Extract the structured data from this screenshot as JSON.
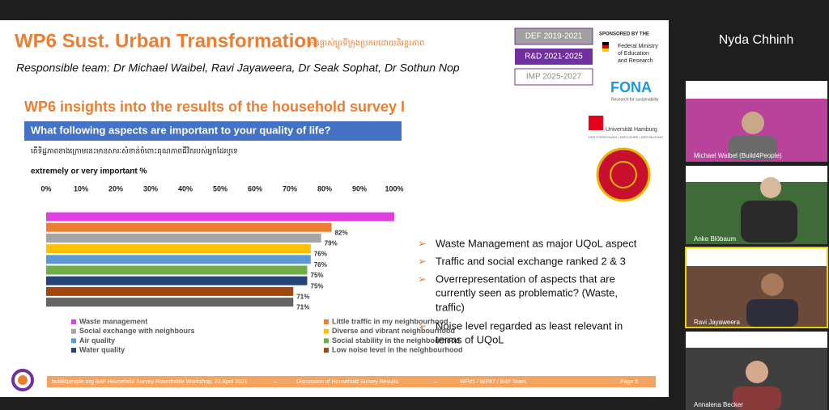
{
  "slide": {
    "title": "WP6 Sust. Urban Transformation",
    "title_khmer": "ការផ្លាស់ប្តូរទីក្រុងប្រកបដោយនិរន្តរភាព",
    "team": "Responsible team: Dr Michael Waibel, Ravi Jayaweera, Dr Seak Sophat, Dr Sothun Nop",
    "phases": [
      "DEF 2019-2021",
      "R&D 2021-2025",
      "IMP 2025-2027"
    ],
    "sponsor": {
      "label": "SPONSORED BY THE",
      "ministry": [
        "Federal Ministry",
        "of Education",
        "and Research"
      ],
      "fona": "FONA",
      "fona_sub": "Research for sustainability",
      "uni": "Universität Hamburg",
      "uni_sub": "DER FORSCHUNG | DER LEHRE | DER BILDUNG"
    },
    "heading": "WP6 insights into the results of the household survey I",
    "question": "What following aspects are important to your quality of life?",
    "question_khmer": "តើទិដ្ឋភាពខាងក្រោមនេះមានសារៈសំខាន់ចំពោះគុណភាពជីវិតរបស់អ្នកដែរឬទេ",
    "measure": "extremely or very important %",
    "bullets": [
      [
        "Waste Management as major UQoL aspect"
      ],
      [
        "Traffic and social exchange ranked 2 & 3"
      ],
      [
        "Overrepresentation of aspects that are",
        "currently seen as problematic? (Waste,",
        "traffic)"
      ],
      [
        "Noise level regarded as least relevant in",
        "terms of UQoL"
      ]
    ],
    "footer": {
      "event": "build4people.org B4P Household Survey Roundtable Workshop, 22 April 2021",
      "separator": "–",
      "topic": "Discussion of Household Survey Results",
      "team": "WP#1 / WP#7 / B4P Team",
      "page": "Page 5"
    }
  },
  "chart_data": {
    "type": "barh",
    "categories": [
      "Waste management",
      "Little traffic in my neighbourhood",
      "Social exchange with neighbours",
      "Diverse and vibrant neighbourhood",
      "Air quality",
      "Social stability in the neighbourhood",
      "Water quality",
      "Low noise level in the neighbourhood",
      null
    ],
    "values": [
      100,
      82,
      79,
      76,
      76,
      75,
      75,
      71,
      71
    ],
    "value_labels": [
      null,
      "82%",
      "79%",
      "76%",
      "76%",
      "75%",
      "75%",
      "71%",
      "71%"
    ],
    "colors": [
      "#e040e0",
      "#ed7d31",
      "#a5a5a5",
      "#ffc000",
      "#5b9bd5",
      "#70ad47",
      "#264478",
      "#9e480e",
      "#636363"
    ],
    "xlim": [
      0,
      100
    ],
    "xticks": [
      {
        "value": 0,
        "label": "0%"
      },
      {
        "value": 10,
        "label": "10%"
      },
      {
        "value": 20,
        "label": "20%"
      },
      {
        "value": 30,
        "label": "30%"
      },
      {
        "value": 40,
        "label": "40%"
      },
      {
        "value": 50,
        "label": "50%"
      },
      {
        "value": 60,
        "label": "60%"
      },
      {
        "value": 70,
        "label": "70%"
      },
      {
        "value": 80,
        "label": "80%"
      },
      {
        "value": 90,
        "label": "90%"
      },
      {
        "value": 100,
        "label": "100%"
      }
    ],
    "grid": false
  },
  "participants": {
    "presenter": "Nyda Chhinh",
    "tiles": [
      "Michael Waibel (Build4People)",
      "Anke Blöbaum",
      "Ravi Jayaweera",
      "Annalena Becker"
    ]
  }
}
